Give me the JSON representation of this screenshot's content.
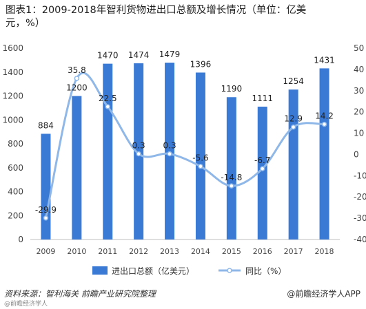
{
  "title_line1": "图表1：2009-2018年智利货物进出口总额及增长情况（单位：亿美",
  "title_line2": "元，%）",
  "chart_data": {
    "type": "bar",
    "categories": [
      "2009",
      "2010",
      "2011",
      "2012",
      "2013",
      "2014",
      "2015",
      "2016",
      "2017",
      "2018"
    ],
    "series": [
      {
        "name": "进出口总额（亿美元）",
        "type": "bar",
        "axis": "left",
        "values": [
          884,
          1200,
          1470,
          1474,
          1479,
          1396,
          1190,
          1111,
          1254,
          1431
        ],
        "labels": [
          "884",
          "1200",
          "1470",
          "1474",
          "1479",
          "1396",
          "1190",
          "1111",
          "1254",
          "1431"
        ]
      },
      {
        "name": "同比（%）",
        "type": "line",
        "axis": "right",
        "smooth": true,
        "values": [
          -29.9,
          35.8,
          22.5,
          0.3,
          0.3,
          -5.6,
          -14.8,
          -6.7,
          12.9,
          14.2
        ],
        "labels": [
          "-29.9",
          "35.8",
          "22.5",
          "0.3",
          "0.3",
          "-5.6",
          "-14.8",
          "-6.7",
          "12.9",
          "14.2"
        ]
      }
    ],
    "y_left": {
      "min": 0,
      "max": 1600,
      "ticks": [
        0,
        200,
        400,
        600,
        800,
        1000,
        1200,
        1400,
        1600
      ]
    },
    "y_right": {
      "min": -40,
      "max": 50,
      "ticks": [
        -40,
        -30,
        -20,
        -10,
        0,
        10,
        20,
        30,
        40,
        50
      ]
    },
    "legend_position": "bottom",
    "grid": false,
    "colors": {
      "bar": "#3a7ad5",
      "line": "#8fb8e8",
      "marker": "#ffffff"
    }
  },
  "source": "资料来源：智利海关  前瞻产业研究院整理",
  "brand": "@前瞻经济学人APP",
  "sub_source": "@前瞻经济学人"
}
